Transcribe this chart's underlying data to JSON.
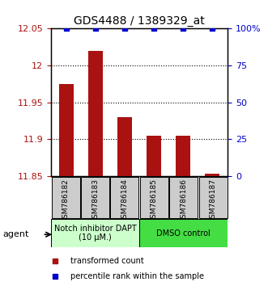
{
  "title": "GDS4488 / 1389329_at",
  "samples": [
    "GSM786182",
    "GSM786183",
    "GSM786184",
    "GSM786185",
    "GSM786186",
    "GSM786187"
  ],
  "bar_values": [
    11.975,
    12.02,
    11.93,
    11.905,
    11.905,
    11.853
  ],
  "ylim_left": [
    11.85,
    12.05
  ],
  "ylim_right": [
    0,
    100
  ],
  "yticks_left": [
    11.85,
    11.9,
    11.95,
    12.0,
    12.05
  ],
  "yticks_right": [
    0,
    25,
    50,
    75,
    100
  ],
  "bar_color": "#aa1111",
  "dot_color": "#0000cc",
  "bar_bottom": 11.85,
  "group1_label": "Notch inhibitor DAPT\n(10 μM.)",
  "group2_label": "DMSO control",
  "group1_color": "#ccffcc",
  "group2_color": "#44dd44",
  "legend_bar_label": "transformed count",
  "legend_dot_label": "percentile rank within the sample",
  "agent_label": "agent",
  "bar_color_hex": "#cc0000",
  "dot_color_hex": "#0000cc",
  "title_fontsize": 10,
  "tick_fontsize": 8,
  "label_fontsize": 7.5
}
